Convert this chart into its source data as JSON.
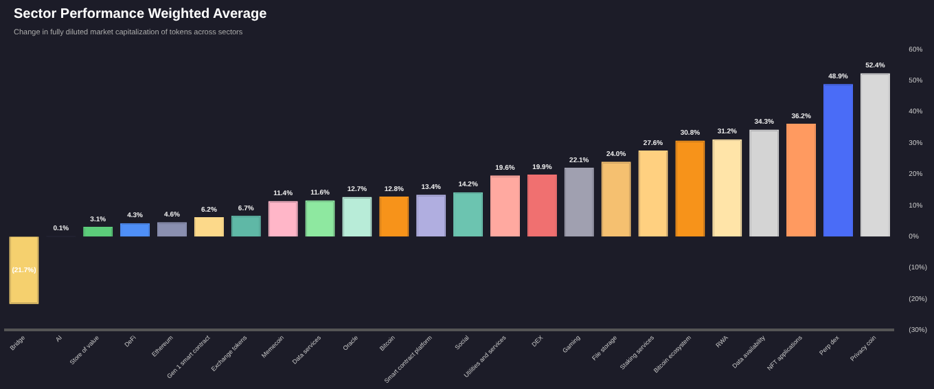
{
  "chart_data": {
    "type": "bar",
    "title": "Sector Performance Weighted Average",
    "subtitle": "Change in fully diluted market capitalization of tokens across sectors",
    "categories": [
      "Bridge",
      "AI",
      "Store of value",
      "DeFi",
      "Ethereum",
      "Gen 1 smart contract",
      "Exchange tokens",
      "Memecoin",
      "Data services",
      "Oracle",
      "Bitcoin",
      "Smart contract platform",
      "Social",
      "Utilities and services",
      "DEX",
      "Gaming",
      "File storage",
      "Staking services",
      "Bitcoin ecosystem",
      "RWA",
      "Data availability",
      "NFT applications",
      "Perp dex",
      "Privacy coin"
    ],
    "values": [
      -21.7,
      0.1,
      3.1,
      4.3,
      4.6,
      6.2,
      6.7,
      11.4,
      11.6,
      12.7,
      12.8,
      13.4,
      14.2,
      19.6,
      19.9,
      22.1,
      24.0,
      27.6,
      30.8,
      31.2,
      34.3,
      36.2,
      48.9,
      52.4
    ],
    "value_labels": [
      "(21.7%)",
      "0.1%",
      "3.1%",
      "4.3%",
      "4.6%",
      "6.2%",
      "6.7%",
      "11.4%",
      "11.6%",
      "12.7%",
      "12.8%",
      "13.4%",
      "14.2%",
      "19.6%",
      "19.9%",
      "22.1%",
      "24.0%",
      "27.6%",
      "30.8%",
      "31.2%",
      "34.3%",
      "36.2%",
      "48.9%",
      "52.4%"
    ],
    "colors": [
      "#f5d06e",
      "#6b6bb0",
      "#5ccc7a",
      "#4f8ff7",
      "#8a8fb0",
      "#fcd98a",
      "#5fb8a6",
      "#ffb6c8",
      "#8ee8a0",
      "#b8ecd8",
      "#f7931a",
      "#b0aee0",
      "#6cc4b0",
      "#ffa9a0",
      "#f07070",
      "#a0a0b0",
      "#f5c070",
      "#ffd080",
      "#f7931a",
      "#ffe4a8",
      "#d4d4d4",
      "#ff9a60",
      "#4a6cf7",
      "#d8d8d8"
    ],
    "ylim": [
      -30,
      60
    ],
    "yticks": [
      {
        "value": -30,
        "label": "(30%)"
      },
      {
        "value": -20,
        "label": "(20%)"
      },
      {
        "value": -10,
        "label": "(10%)"
      },
      {
        "value": 0,
        "label": "0%"
      },
      {
        "value": 10,
        "label": "10%"
      },
      {
        "value": 20,
        "label": "20%"
      },
      {
        "value": 30,
        "label": "30%"
      },
      {
        "value": 40,
        "label": "40%"
      },
      {
        "value": 50,
        "label": "50%"
      },
      {
        "value": 60,
        "label": "60%"
      }
    ],
    "grid": false,
    "legend": false
  }
}
